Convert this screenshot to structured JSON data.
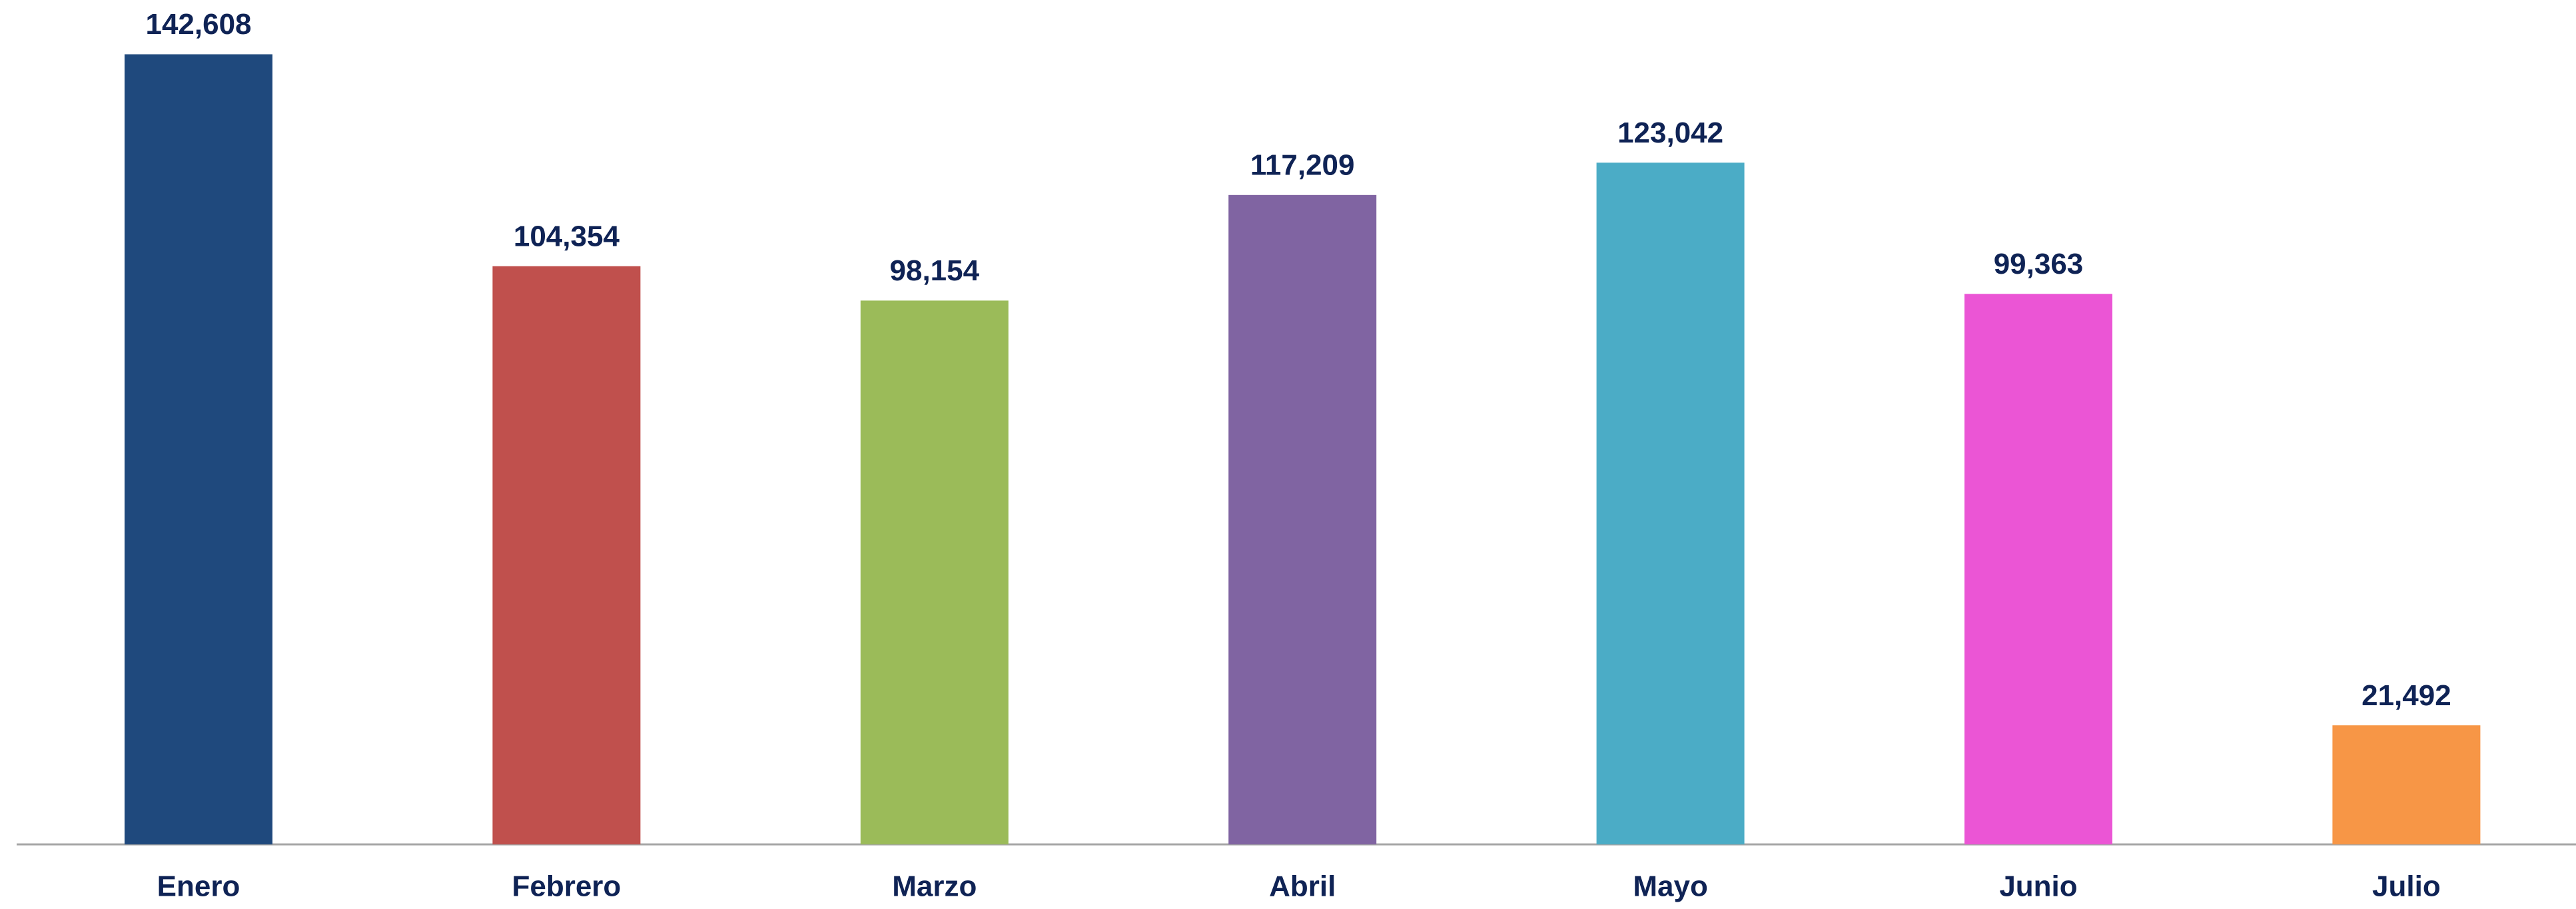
{
  "chart_data": {
    "type": "bar",
    "categories": [
      "Enero",
      "Febrero",
      "Marzo",
      "Abril",
      "Mayo",
      "Junio",
      "Julio"
    ],
    "values": [
      142608,
      104354,
      98154,
      117209,
      123042,
      99363,
      21492
    ],
    "value_labels": [
      "142,608",
      "104,354",
      "98,154",
      "117,209",
      "123,042",
      "99,363",
      "21,492"
    ],
    "colors": [
      "#1f497d",
      "#c0504d",
      "#9bbb59",
      "#8064a2",
      "#4bacc6",
      "#eb55d5",
      "#f79646"
    ],
    "ylim": [
      0,
      150000
    ]
  }
}
